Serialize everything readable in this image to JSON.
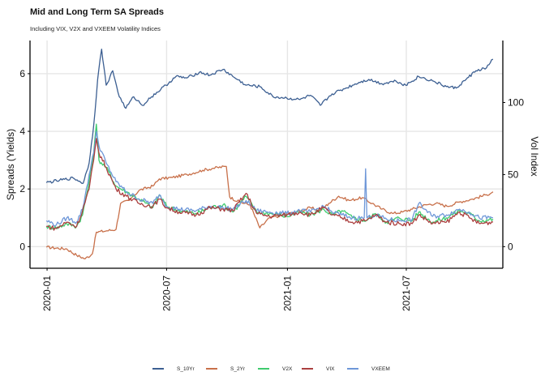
{
  "chart_data": {
    "type": "line",
    "title": "Mid and Long Term SA Spreads",
    "subtitle": "Including VIX, V2X and VXEEM Volatility Indices",
    "ylabel": "Spreads (Yields)",
    "y2label": "Vol Index",
    "xlabel": "",
    "ylim": [
      -0.75,
      7.15
    ],
    "y2lim": [
      -15,
      143
    ],
    "xlim": [
      "2019-12-06",
      "2021-11-25"
    ],
    "x_ticks": [
      "2020-01",
      "2020-07",
      "2021-01",
      "2021-07"
    ],
    "y_ticks": [
      "0",
      "2",
      "4",
      "6"
    ],
    "y2_ticks": [
      "0",
      "50",
      "100"
    ],
    "grid": true,
    "legend_position": "bottom",
    "series": [
      {
        "name": "S_10Yr",
        "axis": "left",
        "color": "#3c5f92",
        "points": [
          [
            "2019-12-31",
            2.22
          ],
          [
            "2020-01-20",
            2.3
          ],
          [
            "2020-02-10",
            2.38
          ],
          [
            "2020-02-25",
            2.2
          ],
          [
            "2020-03-05",
            2.9
          ],
          [
            "2020-03-12",
            4.2
          ],
          [
            "2020-03-18",
            5.8
          ],
          [
            "2020-03-24",
            6.85
          ],
          [
            "2020-03-31",
            5.6
          ],
          [
            "2020-04-10",
            6.1
          ],
          [
            "2020-04-20",
            5.2
          ],
          [
            "2020-04-30",
            4.8
          ],
          [
            "2020-05-12",
            5.2
          ],
          [
            "2020-05-25",
            4.9
          ],
          [
            "2020-06-08",
            5.2
          ],
          [
            "2020-06-30",
            5.6
          ],
          [
            "2020-07-15",
            5.9
          ],
          [
            "2020-08-01",
            5.85
          ],
          [
            "2020-08-20",
            6.05
          ],
          [
            "2020-09-05",
            5.95
          ],
          [
            "2020-09-25",
            6.15
          ],
          [
            "2020-10-10",
            5.9
          ],
          [
            "2020-10-30",
            5.6
          ],
          [
            "2020-11-20",
            5.55
          ],
          [
            "2020-12-10",
            5.2
          ],
          [
            "2020-12-31",
            5.15
          ],
          [
            "2021-01-20",
            5.1
          ],
          [
            "2021-02-05",
            5.25
          ],
          [
            "2021-02-20",
            4.9
          ],
          [
            "2021-03-10",
            5.3
          ],
          [
            "2021-03-31",
            5.5
          ],
          [
            "2021-04-20",
            5.7
          ],
          [
            "2021-05-05",
            5.8
          ],
          [
            "2021-05-25",
            5.65
          ],
          [
            "2021-06-15",
            5.75
          ],
          [
            "2021-06-30",
            5.6
          ],
          [
            "2021-07-20",
            5.9
          ],
          [
            "2021-08-10",
            5.75
          ],
          [
            "2021-08-31",
            5.55
          ],
          [
            "2021-09-15",
            5.5
          ],
          [
            "2021-09-30",
            5.8
          ],
          [
            "2021-10-15",
            6.1
          ],
          [
            "2021-10-31",
            6.2
          ],
          [
            "2021-11-10",
            6.5
          ]
        ]
      },
      {
        "name": "S_2Yr",
        "axis": "left",
        "color": "#c8704a",
        "points": [
          [
            "2019-12-31",
            -0.02
          ],
          [
            "2020-01-31",
            -0.08
          ],
          [
            "2020-02-15",
            -0.3
          ],
          [
            "2020-02-28",
            -0.42
          ],
          [
            "2020-03-10",
            -0.25
          ],
          [
            "2020-03-16",
            0.5
          ],
          [
            "2020-04-01",
            0.55
          ],
          [
            "2020-04-15",
            0.6
          ],
          [
            "2020-04-22",
            1.5
          ],
          [
            "2020-05-05",
            1.6
          ],
          [
            "2020-05-20",
            1.95
          ],
          [
            "2020-06-10",
            2.1
          ],
          [
            "2020-06-20",
            2.35
          ],
          [
            "2020-07-10",
            2.4
          ],
          [
            "2020-08-01",
            2.5
          ],
          [
            "2020-08-25",
            2.65
          ],
          [
            "2020-09-10",
            2.72
          ],
          [
            "2020-09-30",
            2.78
          ],
          [
            "2020-10-05",
            1.72
          ],
          [
            "2020-10-20",
            1.55
          ],
          [
            "2020-11-05",
            1.45
          ],
          [
            "2020-11-20",
            0.65
          ],
          [
            "2020-12-05",
            1.0
          ],
          [
            "2020-12-31",
            1.12
          ],
          [
            "2021-01-15",
            1.2
          ],
          [
            "2021-02-05",
            1.35
          ],
          [
            "2021-02-20",
            1.25
          ],
          [
            "2021-03-05",
            1.5
          ],
          [
            "2021-03-20",
            1.75
          ],
          [
            "2021-04-05",
            1.6
          ],
          [
            "2021-04-25",
            1.7
          ],
          [
            "2021-05-10",
            1.5
          ],
          [
            "2021-05-25",
            1.3
          ],
          [
            "2021-06-10",
            1.15
          ],
          [
            "2021-06-25",
            1.2
          ],
          [
            "2021-07-10",
            1.3
          ],
          [
            "2021-07-31",
            1.45
          ],
          [
            "2021-08-15",
            1.5
          ],
          [
            "2021-09-01",
            1.4
          ],
          [
            "2021-09-20",
            1.55
          ],
          [
            "2021-10-10",
            1.65
          ],
          [
            "2021-10-31",
            1.8
          ],
          [
            "2021-11-10",
            1.9
          ]
        ]
      },
      {
        "name": "V2X",
        "axis": "right",
        "color": "#3ecb6e",
        "points": [
          [
            "2019-12-31",
            14
          ],
          [
            "2020-01-15",
            13
          ],
          [
            "2020-01-31",
            16
          ],
          [
            "2020-02-15",
            14
          ],
          [
            "2020-02-24",
            22
          ],
          [
            "2020-03-05",
            45
          ],
          [
            "2020-03-12",
            65
          ],
          [
            "2020-03-16",
            85
          ],
          [
            "2020-03-20",
            60
          ],
          [
            "2020-03-31",
            55
          ],
          [
            "2020-04-15",
            42
          ],
          [
            "2020-05-01",
            38
          ],
          [
            "2020-05-20",
            33
          ],
          [
            "2020-06-10",
            27
          ],
          [
            "2020-06-20",
            36
          ],
          [
            "2020-07-01",
            28
          ],
          [
            "2020-07-20",
            25
          ],
          [
            "2020-08-15",
            23
          ],
          [
            "2020-09-05",
            27
          ],
          [
            "2020-09-25",
            29
          ],
          [
            "2020-10-10",
            24
          ],
          [
            "2020-10-30",
            35
          ],
          [
            "2020-11-15",
            24
          ],
          [
            "2020-12-05",
            23
          ],
          [
            "2020-12-31",
            21
          ],
          [
            "2021-01-20",
            24
          ],
          [
            "2021-02-05",
            22
          ],
          [
            "2021-02-25",
            26
          ],
          [
            "2021-03-10",
            22
          ],
          [
            "2021-03-25",
            25
          ],
          [
            "2021-04-10",
            20
          ],
          [
            "2021-05-01",
            18
          ],
          [
            "2021-05-15",
            23
          ],
          [
            "2021-06-01",
            17
          ],
          [
            "2021-06-20",
            20
          ],
          [
            "2021-07-10",
            18
          ],
          [
            "2021-07-20",
            24
          ],
          [
            "2021-08-10",
            17
          ],
          [
            "2021-08-31",
            20
          ],
          [
            "2021-09-20",
            25
          ],
          [
            "2021-10-05",
            23
          ],
          [
            "2021-10-20",
            18
          ],
          [
            "2021-11-10",
            19
          ]
        ]
      },
      {
        "name": "VIX",
        "axis": "right",
        "color": "#ab3f3f",
        "points": [
          [
            "2019-12-31",
            14
          ],
          [
            "2020-01-15",
            12.5
          ],
          [
            "2020-01-31",
            17
          ],
          [
            "2020-02-15",
            14
          ],
          [
            "2020-02-24",
            25
          ],
          [
            "2020-03-05",
            40
          ],
          [
            "2020-03-12",
            60
          ],
          [
            "2020-03-16",
            75
          ],
          [
            "2020-03-20",
            65
          ],
          [
            "2020-03-31",
            55
          ],
          [
            "2020-04-15",
            40
          ],
          [
            "2020-05-01",
            35
          ],
          [
            "2020-05-20",
            30
          ],
          [
            "2020-06-10",
            28
          ],
          [
            "2020-06-20",
            33
          ],
          [
            "2020-07-01",
            27
          ],
          [
            "2020-07-20",
            24
          ],
          [
            "2020-08-15",
            22
          ],
          [
            "2020-09-05",
            27
          ],
          [
            "2020-09-25",
            26
          ],
          [
            "2020-10-10",
            25
          ],
          [
            "2020-10-30",
            37
          ],
          [
            "2020-11-15",
            23
          ],
          [
            "2020-12-05",
            21
          ],
          [
            "2020-12-31",
            22
          ],
          [
            "2021-01-20",
            24
          ],
          [
            "2021-02-05",
            22
          ],
          [
            "2021-02-25",
            27
          ],
          [
            "2021-03-10",
            22
          ],
          [
            "2021-03-25",
            20
          ],
          [
            "2021-04-10",
            17
          ],
          [
            "2021-05-01",
            18
          ],
          [
            "2021-05-15",
            22
          ],
          [
            "2021-06-01",
            17
          ],
          [
            "2021-06-20",
            16
          ],
          [
            "2021-07-10",
            16
          ],
          [
            "2021-07-20",
            22
          ],
          [
            "2021-08-10",
            16
          ],
          [
            "2021-08-31",
            17
          ],
          [
            "2021-09-20",
            24
          ],
          [
            "2021-10-05",
            20
          ],
          [
            "2021-10-20",
            16
          ],
          [
            "2021-11-10",
            17
          ]
        ]
      },
      {
        "name": "VXEEM",
        "axis": "right",
        "color": "#6e97d8",
        "points": [
          [
            "2019-12-31",
            18
          ],
          [
            "2020-01-15",
            15
          ],
          [
            "2020-01-31",
            20
          ],
          [
            "2020-02-15",
            17
          ],
          [
            "2020-02-24",
            26
          ],
          [
            "2020-03-05",
            50
          ],
          [
            "2020-03-12",
            65
          ],
          [
            "2020-03-16",
            80
          ],
          [
            "2020-03-20",
            70
          ],
          [
            "2020-03-31",
            58
          ],
          [
            "2020-04-15",
            45
          ],
          [
            "2020-05-01",
            38
          ],
          [
            "2020-05-20",
            33
          ],
          [
            "2020-06-10",
            30
          ],
          [
            "2020-06-20",
            36
          ],
          [
            "2020-07-01",
            28
          ],
          [
            "2020-07-20",
            26
          ],
          [
            "2020-08-15",
            25
          ],
          [
            "2020-09-05",
            28
          ],
          [
            "2020-09-25",
            27
          ],
          [
            "2020-10-10",
            26
          ],
          [
            "2020-10-30",
            32
          ],
          [
            "2020-11-15",
            25
          ],
          [
            "2020-12-05",
            24
          ],
          [
            "2020-12-31",
            23
          ],
          [
            "2021-01-20",
            25
          ],
          [
            "2021-02-05",
            24
          ],
          [
            "2021-02-25",
            28
          ],
          [
            "2021-03-10",
            24
          ],
          [
            "2021-03-25",
            22
          ],
          [
            "2021-04-10",
            20
          ],
          [
            "2021-04-28",
            20
          ],
          [
            "2021-04-30",
            54
          ],
          [
            "2021-05-02",
            20
          ],
          [
            "2021-05-15",
            22
          ],
          [
            "2021-06-01",
            19
          ],
          [
            "2021-06-20",
            18
          ],
          [
            "2021-07-10",
            19
          ],
          [
            "2021-07-20",
            30
          ],
          [
            "2021-08-10",
            21
          ],
          [
            "2021-08-31",
            22
          ],
          [
            "2021-09-20",
            26
          ],
          [
            "2021-10-05",
            24
          ],
          [
            "2021-10-20",
            20
          ],
          [
            "2021-11-10",
            20
          ]
        ]
      }
    ]
  }
}
